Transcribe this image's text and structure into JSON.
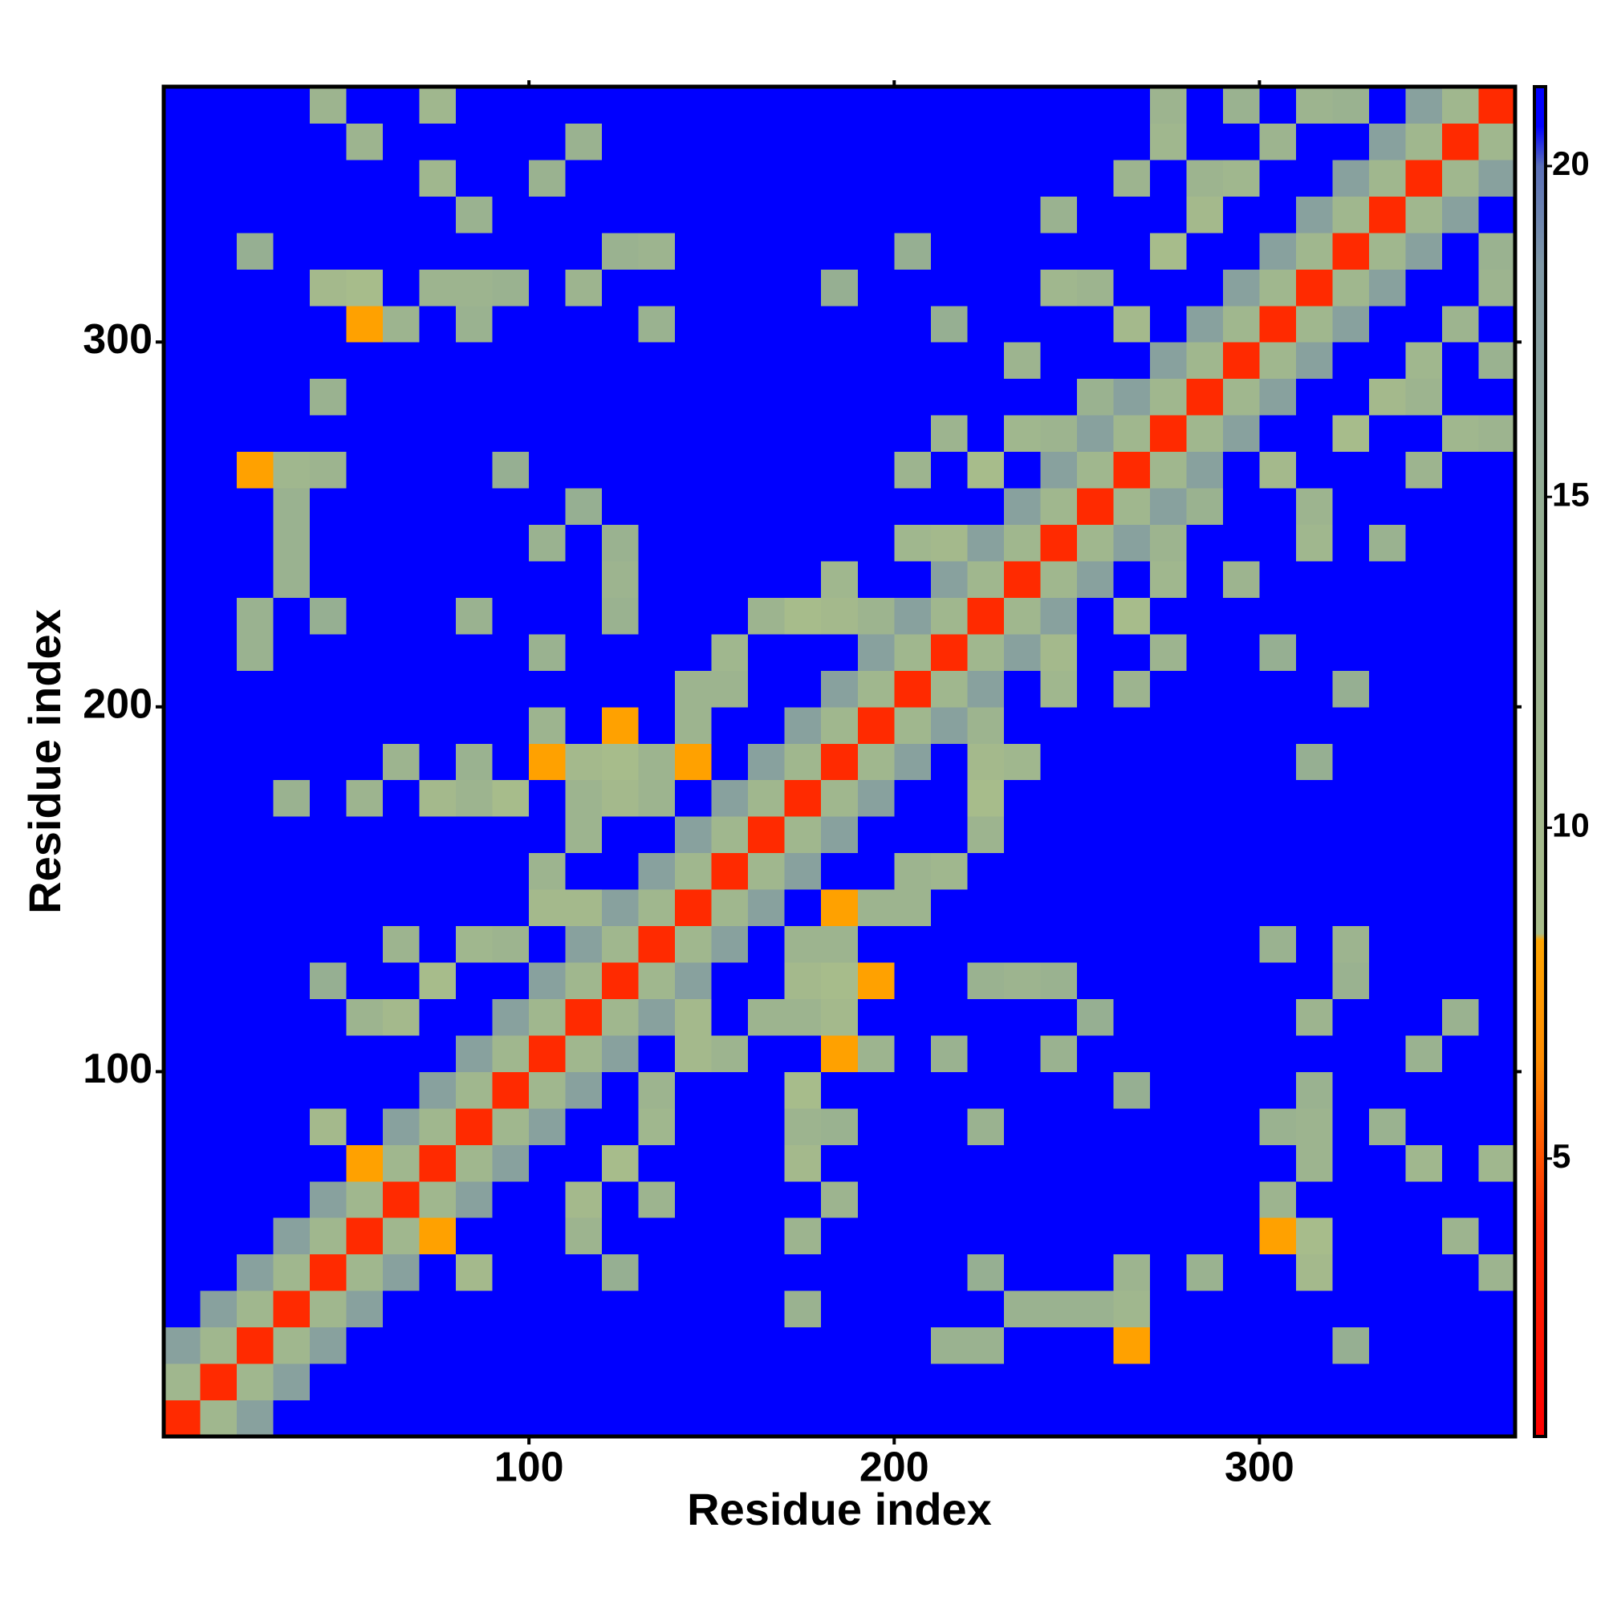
{
  "chart_data": {
    "type": "heatmap",
    "xlabel": "Residue index",
    "ylabel": "Residue index",
    "xlim": [
      0,
      370
    ],
    "ylim": [
      0,
      370
    ],
    "xticks": [
      100,
      200,
      300
    ],
    "yticks": [
      100,
      200,
      300
    ],
    "zlim": [
      0.8,
      21.2
    ],
    "zticks": [
      5,
      10,
      15,
      20
    ],
    "colorscale": [
      [
        0.8,
        "#ff0000"
      ],
      [
        4,
        "#ff2a00"
      ],
      [
        6.5,
        "#ff8c00"
      ],
      [
        8.3,
        "#ffa500"
      ],
      [
        8.4,
        "#a9bd8a"
      ],
      [
        15,
        "#93ad93"
      ],
      [
        18.5,
        "#7f98a6"
      ],
      [
        20,
        "#5a6fb8"
      ],
      [
        20.6,
        "#0000ff"
      ],
      [
        21.2,
        "#0000ff"
      ]
    ],
    "x": [
      5,
      15,
      25,
      35,
      45,
      55,
      65,
      75,
      85,
      95,
      105,
      115,
      125,
      135,
      145,
      155,
      165,
      175,
      185,
      195,
      205,
      215,
      225,
      235,
      245,
      255,
      265,
      275,
      285,
      295,
      305,
      315,
      325,
      335,
      345,
      355,
      365
    ],
    "y": [
      5,
      15,
      25,
      35,
      45,
      55,
      65,
      75,
      85,
      95,
      105,
      115,
      125,
      135,
      145,
      155,
      165,
      175,
      185,
      195,
      205,
      215,
      225,
      235,
      245,
      255,
      265,
      275,
      285,
      295,
      305,
      315,
      325,
      335,
      345,
      355,
      365
    ],
    "z": [
      [
        4,
        11,
        17,
        21,
        21,
        21,
        21,
        21,
        21,
        21,
        21,
        21,
        21,
        21,
        21,
        21,
        21,
        21,
        21,
        21,
        21,
        21,
        21,
        21,
        21,
        21,
        21,
        21,
        21,
        21,
        21,
        21,
        21,
        21,
        21,
        21,
        21
      ],
      [
        11,
        4,
        11,
        17,
        21,
        21,
        21,
        21,
        21,
        21,
        21,
        21,
        21,
        21,
        21,
        21,
        21,
        21,
        21,
        21,
        21,
        21,
        21,
        21,
        21,
        21,
        21,
        21,
        21,
        21,
        21,
        21,
        21,
        21,
        21,
        21,
        21
      ],
      [
        17,
        11,
        4,
        11,
        17,
        21,
        21,
        21,
        21,
        21,
        21,
        21,
        21,
        21,
        21,
        21,
        21,
        21,
        21,
        21,
        21,
        13,
        13,
        21,
        21,
        21,
        8,
        21,
        21,
        21,
        21,
        21,
        14,
        21,
        21,
        21,
        21
      ],
      [
        21,
        17,
        11,
        4,
        11,
        17,
        21,
        21,
        21,
        21,
        21,
        21,
        21,
        21,
        21,
        21,
        21,
        13,
        21,
        21,
        21,
        21,
        21,
        13,
        13,
        13,
        11,
        21,
        21,
        21,
        21,
        21,
        21,
        21,
        21,
        21,
        21
      ],
      [
        21,
        21,
        17,
        11,
        4,
        11,
        17,
        21,
        10,
        21,
        21,
        21,
        14,
        21,
        21,
        21,
        21,
        21,
        21,
        21,
        21,
        21,
        14,
        21,
        21,
        21,
        12,
        21,
        13,
        21,
        21,
        10,
        21,
        21,
        21,
        21,
        12
      ],
      [
        21,
        21,
        21,
        17,
        11,
        4,
        11,
        8,
        21,
        21,
        21,
        12,
        21,
        21,
        21,
        21,
        21,
        12,
        21,
        21,
        21,
        21,
        21,
        21,
        21,
        21,
        21,
        21,
        21,
        21,
        8,
        9,
        21,
        21,
        21,
        12,
        21
      ],
      [
        21,
        21,
        21,
        21,
        17,
        11,
        4,
        11,
        17,
        21,
        21,
        10,
        21,
        12,
        21,
        21,
        21,
        21,
        12,
        21,
        21,
        21,
        21,
        21,
        21,
        21,
        21,
        21,
        21,
        21,
        12,
        21,
        21,
        21,
        21,
        21,
        21
      ],
      [
        21,
        21,
        21,
        21,
        21,
        8,
        11,
        4,
        11,
        17,
        21,
        21,
        9,
        21,
        21,
        21,
        21,
        10,
        21,
        21,
        21,
        21,
        21,
        21,
        21,
        21,
        21,
        21,
        21,
        21,
        21,
        12,
        21,
        21,
        11,
        21,
        11
      ],
      [
        21,
        21,
        21,
        21,
        10,
        21,
        17,
        11,
        4,
        11,
        17,
        21,
        21,
        11,
        21,
        21,
        21,
        12,
        13,
        21,
        21,
        21,
        13,
        21,
        21,
        21,
        21,
        21,
        21,
        21,
        13,
        12,
        21,
        13,
        21,
        21,
        21
      ],
      [
        21,
        21,
        21,
        21,
        21,
        21,
        21,
        17,
        11,
        4,
        11,
        17,
        21,
        12,
        21,
        21,
        21,
        9,
        21,
        21,
        21,
        21,
        21,
        21,
        21,
        21,
        14,
        21,
        21,
        21,
        21,
        13,
        21,
        21,
        21,
        21,
        21
      ],
      [
        21,
        21,
        21,
        21,
        21,
        21,
        21,
        21,
        17,
        11,
        4,
        11,
        17,
        21,
        10,
        12,
        21,
        21,
        8,
        12,
        21,
        13,
        21,
        21,
        13,
        21,
        21,
        21,
        21,
        21,
        21,
        21,
        21,
        21,
        13,
        21,
        21
      ],
      [
        21,
        21,
        21,
        21,
        21,
        12,
        10,
        21,
        21,
        17,
        11,
        4,
        11,
        17,
        10,
        21,
        12,
        12,
        10,
        21,
        21,
        21,
        21,
        21,
        21,
        14,
        21,
        21,
        21,
        21,
        21,
        12,
        21,
        21,
        21,
        13,
        21
      ],
      [
        21,
        21,
        21,
        21,
        14,
        21,
        21,
        9,
        21,
        21,
        17,
        11,
        4,
        11,
        17,
        21,
        21,
        10,
        9,
        8,
        21,
        21,
        13,
        12,
        13,
        21,
        21,
        21,
        21,
        21,
        21,
        21,
        13,
        21,
        21,
        21,
        21
      ],
      [
        21,
        21,
        21,
        21,
        21,
        21,
        12,
        21,
        11,
        12,
        21,
        17,
        11,
        4,
        11,
        17,
        21,
        12,
        12,
        21,
        21,
        21,
        21,
        21,
        21,
        21,
        21,
        21,
        21,
        21,
        13,
        21,
        12,
        21,
        21,
        21,
        21
      ],
      [
        21,
        21,
        21,
        21,
        21,
        21,
        21,
        21,
        21,
        21,
        10,
        10,
        17,
        11,
        4,
        11,
        17,
        21,
        8,
        12,
        12,
        21,
        21,
        21,
        21,
        21,
        21,
        21,
        21,
        21,
        21,
        21,
        21,
        21,
        21,
        21,
        21
      ],
      [
        21,
        21,
        21,
        21,
        21,
        21,
        21,
        21,
        21,
        21,
        12,
        21,
        21,
        17,
        11,
        4,
        11,
        17,
        21,
        21,
        12,
        11,
        21,
        21,
        21,
        21,
        21,
        21,
        21,
        21,
        21,
        21,
        21,
        21,
        21,
        21,
        21
      ],
      [
        21,
        21,
        21,
        21,
        21,
        21,
        21,
        21,
        21,
        21,
        21,
        12,
        21,
        21,
        17,
        11,
        4,
        11,
        17,
        21,
        21,
        21,
        12,
        21,
        21,
        21,
        21,
        21,
        21,
        21,
        21,
        21,
        21,
        21,
        21,
        21,
        21
      ],
      [
        21,
        21,
        21,
        13,
        21,
        12,
        21,
        10,
        12,
        9,
        21,
        12,
        10,
        12,
        21,
        17,
        11,
        4,
        11,
        17,
        21,
        21,
        9,
        21,
        21,
        21,
        21,
        21,
        21,
        21,
        21,
        21,
        21,
        21,
        21,
        21,
        21
      ],
      [
        21,
        21,
        21,
        21,
        21,
        21,
        12,
        21,
        13,
        21,
        8,
        10,
        9,
        12,
        8,
        21,
        17,
        11,
        4,
        11,
        17,
        21,
        10,
        11,
        21,
        21,
        21,
        21,
        21,
        21,
        21,
        14,
        21,
        21,
        21,
        21,
        21
      ],
      [
        21,
        21,
        21,
        21,
        21,
        21,
        21,
        21,
        21,
        21,
        12,
        21,
        8,
        21,
        12,
        21,
        21,
        17,
        11,
        4,
        11,
        17,
        12,
        21,
        21,
        21,
        21,
        21,
        21,
        21,
        21,
        21,
        21,
        21,
        21,
        21,
        21
      ],
      [
        21,
        21,
        21,
        21,
        21,
        21,
        21,
        21,
        21,
        21,
        21,
        21,
        21,
        21,
        12,
        12,
        21,
        21,
        17,
        11,
        4,
        11,
        17,
        21,
        11,
        21,
        12,
        21,
        21,
        21,
        21,
        21,
        14,
        21,
        21,
        21,
        21
      ],
      [
        21,
        21,
        13,
        21,
        21,
        21,
        21,
        21,
        21,
        21,
        13,
        21,
        21,
        21,
        21,
        11,
        21,
        21,
        21,
        17,
        11,
        4,
        11,
        17,
        10,
        21,
        21,
        12,
        21,
        21,
        14,
        21,
        21,
        21,
        21,
        21,
        21
      ],
      [
        21,
        21,
        13,
        21,
        14,
        21,
        21,
        21,
        13,
        21,
        21,
        21,
        13,
        21,
        21,
        21,
        12,
        9,
        10,
        12,
        17,
        11,
        4,
        11,
        17,
        21,
        9,
        21,
        21,
        21,
        21,
        21,
        21,
        21,
        21,
        21,
        21
      ],
      [
        21,
        21,
        21,
        13,
        21,
        21,
        21,
        21,
        21,
        21,
        21,
        21,
        12,
        21,
        21,
        21,
        21,
        21,
        11,
        21,
        21,
        17,
        11,
        4,
        11,
        17,
        21,
        11,
        21,
        12,
        21,
        21,
        21,
        21,
        21,
        21,
        21
      ],
      [
        21,
        21,
        21,
        13,
        21,
        21,
        21,
        21,
        21,
        21,
        13,
        21,
        13,
        21,
        21,
        21,
        21,
        21,
        21,
        21,
        11,
        10,
        17,
        11,
        4,
        11,
        17,
        12,
        21,
        21,
        21,
        11,
        21,
        13,
        21,
        21,
        21
      ],
      [
        21,
        21,
        21,
        13,
        21,
        21,
        21,
        21,
        21,
        21,
        21,
        14,
        21,
        21,
        21,
        21,
        21,
        21,
        21,
        21,
        21,
        21,
        21,
        17,
        11,
        4,
        11,
        17,
        13,
        21,
        21,
        12,
        21,
        21,
        21,
        21,
        21
      ],
      [
        21,
        21,
        8,
        11,
        12,
        21,
        21,
        21,
        21,
        14,
        21,
        21,
        21,
        21,
        21,
        21,
        21,
        21,
        21,
        21,
        12,
        21,
        9,
        21,
        17,
        11,
        4,
        11,
        17,
        21,
        10,
        21,
        21,
        21,
        12,
        21,
        21
      ],
      [
        21,
        21,
        21,
        21,
        21,
        21,
        21,
        21,
        21,
        21,
        21,
        21,
        21,
        21,
        21,
        21,
        21,
        21,
        21,
        21,
        21,
        12,
        21,
        11,
        12,
        17,
        11,
        4,
        11,
        17,
        21,
        21,
        9,
        21,
        21,
        11,
        12
      ],
      [
        21,
        21,
        21,
        21,
        13,
        21,
        21,
        21,
        21,
        21,
        21,
        21,
        21,
        21,
        21,
        21,
        21,
        21,
        21,
        21,
        21,
        21,
        21,
        21,
        21,
        13,
        17,
        11,
        4,
        11,
        17,
        21,
        21,
        10,
        12,
        21,
        21
      ],
      [
        21,
        21,
        21,
        21,
        21,
        21,
        21,
        21,
        21,
        21,
        21,
        21,
        21,
        21,
        21,
        21,
        21,
        21,
        21,
        21,
        21,
        21,
        21,
        12,
        21,
        21,
        21,
        17,
        11,
        4,
        11,
        17,
        21,
        21,
        11,
        21,
        13
      ],
      [
        21,
        21,
        21,
        21,
        21,
        8,
        12,
        21,
        13,
        21,
        21,
        21,
        21,
        13,
        21,
        21,
        21,
        21,
        21,
        21,
        21,
        14,
        21,
        21,
        21,
        21,
        10,
        21,
        17,
        11,
        4,
        11,
        17,
        21,
        21,
        12,
        21
      ],
      [
        21,
        21,
        21,
        21,
        10,
        9,
        21,
        12,
        12,
        13,
        21,
        12,
        21,
        21,
        21,
        21,
        21,
        21,
        14,
        21,
        21,
        21,
        21,
        21,
        11,
        12,
        21,
        21,
        21,
        17,
        11,
        4,
        11,
        17,
        21,
        21,
        12
      ],
      [
        21,
        21,
        14,
        21,
        21,
        21,
        21,
        21,
        21,
        21,
        21,
        21,
        13,
        12,
        21,
        21,
        21,
        21,
        21,
        21,
        14,
        21,
        21,
        21,
        21,
        21,
        21,
        9,
        21,
        21,
        17,
        11,
        4,
        11,
        17,
        21,
        13
      ],
      [
        21,
        21,
        21,
        21,
        21,
        21,
        21,
        21,
        13,
        21,
        21,
        21,
        21,
        21,
        21,
        21,
        21,
        21,
        21,
        21,
        21,
        21,
        21,
        21,
        13,
        21,
        21,
        21,
        10,
        21,
        21,
        17,
        11,
        4,
        11,
        17,
        21
      ],
      [
        21,
        21,
        21,
        21,
        21,
        21,
        21,
        11,
        21,
        21,
        13,
        21,
        21,
        21,
        21,
        21,
        21,
        21,
        21,
        21,
        21,
        21,
        21,
        21,
        21,
        21,
        12,
        21,
        12,
        11,
        21,
        21,
        17,
        11,
        4,
        11,
        17
      ],
      [
        21,
        21,
        21,
        21,
        21,
        12,
        21,
        21,
        21,
        21,
        21,
        13,
        21,
        21,
        21,
        21,
        21,
        21,
        21,
        21,
        21,
        21,
        21,
        21,
        21,
        21,
        21,
        11,
        21,
        21,
        12,
        21,
        21,
        17,
        11,
        4,
        11
      ],
      [
        21,
        21,
        21,
        21,
        12,
        21,
        21,
        11,
        21,
        21,
        21,
        21,
        21,
        21,
        21,
        21,
        21,
        21,
        21,
        21,
        21,
        21,
        21,
        21,
        21,
        21,
        21,
        12,
        21,
        13,
        21,
        12,
        13,
        21,
        17,
        11,
        4
      ]
    ]
  }
}
